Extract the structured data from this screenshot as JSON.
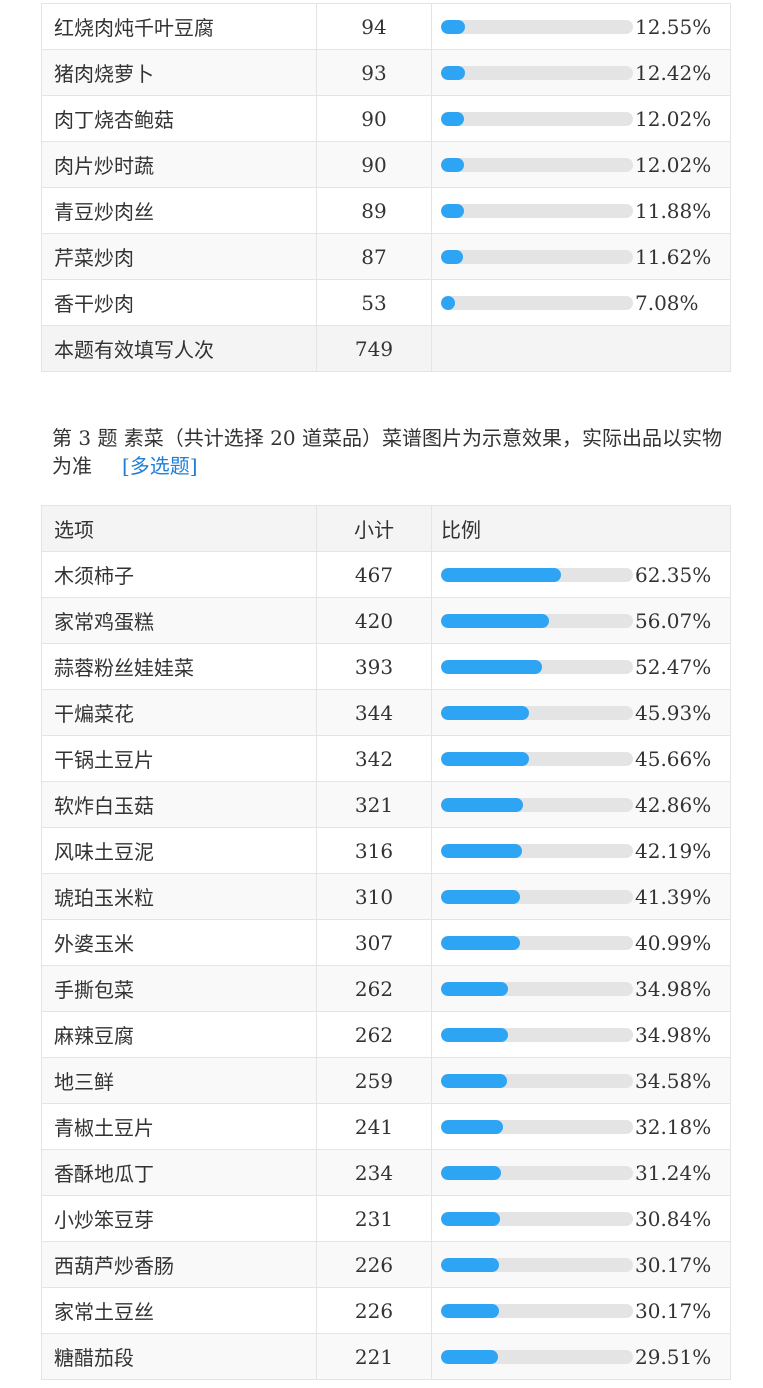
{
  "q2_table": {
    "rows": [
      {
        "option": "红烧肉炖千叶豆腐",
        "count": "94",
        "percent": "12.55%",
        "ratio": 0.1255
      },
      {
        "option": "猪肉烧萝卜",
        "count": "93",
        "percent": "12.42%",
        "ratio": 0.1242
      },
      {
        "option": "肉丁烧杏鲍菇",
        "count": "90",
        "percent": "12.02%",
        "ratio": 0.1202
      },
      {
        "option": "肉片炒时蔬",
        "count": "90",
        "percent": "12.02%",
        "ratio": 0.1202
      },
      {
        "option": "青豆炒肉丝",
        "count": "89",
        "percent": "11.88%",
        "ratio": 0.1188
      },
      {
        "option": "芹菜炒肉",
        "count": "87",
        "percent": "11.62%",
        "ratio": 0.1162
      },
      {
        "option": "香干炒肉",
        "count": "53",
        "percent": "7.08%",
        "ratio": 0.0708
      }
    ],
    "total_label": "本题有效填写人次",
    "total_count": "749"
  },
  "q3": {
    "title": "第 3 题   素菜（共计选择 20 道菜品）菜谱图片为示意效果，实际出品以实物为准",
    "type_label": "[多选题]"
  },
  "q3_table": {
    "headers": {
      "option": "选项",
      "count": "小计",
      "ratio": "比例"
    },
    "rows": [
      {
        "option": "木须柿子",
        "count": "467",
        "percent": "62.35%",
        "ratio": 0.6235
      },
      {
        "option": "家常鸡蛋糕",
        "count": "420",
        "percent": "56.07%",
        "ratio": 0.5607
      },
      {
        "option": "蒜蓉粉丝娃娃菜",
        "count": "393",
        "percent": "52.47%",
        "ratio": 0.5247
      },
      {
        "option": "干煸菜花",
        "count": "344",
        "percent": "45.93%",
        "ratio": 0.4593
      },
      {
        "option": "干锅土豆片",
        "count": "342",
        "percent": "45.66%",
        "ratio": 0.4566
      },
      {
        "option": "软炸白玉菇",
        "count": "321",
        "percent": "42.86%",
        "ratio": 0.4286
      },
      {
        "option": "风味土豆泥",
        "count": "316",
        "percent": "42.19%",
        "ratio": 0.4219
      },
      {
        "option": "琥珀玉米粒",
        "count": "310",
        "percent": "41.39%",
        "ratio": 0.4139
      },
      {
        "option": "外婆玉米",
        "count": "307",
        "percent": "40.99%",
        "ratio": 0.4099
      },
      {
        "option": "手撕包菜",
        "count": "262",
        "percent": "34.98%",
        "ratio": 0.3498
      },
      {
        "option": "麻辣豆腐",
        "count": "262",
        "percent": "34.98%",
        "ratio": 0.3498
      },
      {
        "option": "地三鲜",
        "count": "259",
        "percent": "34.58%",
        "ratio": 0.3458
      },
      {
        "option": "青椒土豆片",
        "count": "241",
        "percent": "32.18%",
        "ratio": 0.3218
      },
      {
        "option": "香酥地瓜丁",
        "count": "234",
        "percent": "31.24%",
        "ratio": 0.3124
      },
      {
        "option": "小炒笨豆芽",
        "count": "231",
        "percent": "30.84%",
        "ratio": 0.3084
      },
      {
        "option": "西葫芦炒香肠",
        "count": "226",
        "percent": "30.17%",
        "ratio": 0.3017
      },
      {
        "option": "家常土豆丝",
        "count": "226",
        "percent": "30.17%",
        "ratio": 0.3017
      },
      {
        "option": "糖醋茄段",
        "count": "221",
        "percent": "29.51%",
        "ratio": 0.2951
      }
    ]
  },
  "colors": {
    "bar_fill": "#2ea4f5",
    "bar_track": "#e4e4e4",
    "link": "#1e7fd9"
  }
}
